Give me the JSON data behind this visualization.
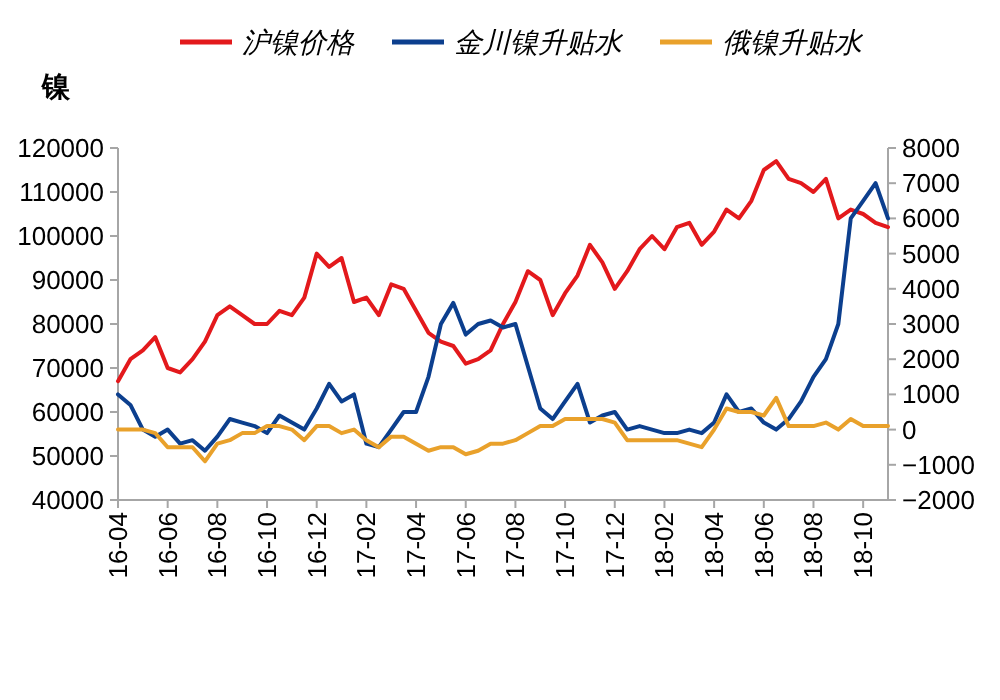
{
  "chart_data": {
    "type": "line",
    "ylabel": "镍",
    "legend": "top",
    "grid": false,
    "ylim": [
      40000,
      120000
    ],
    "yticks": [
      40000,
      50000,
      60000,
      70000,
      80000,
      90000,
      100000,
      110000,
      120000
    ],
    "y2lim": [
      -2000,
      8000
    ],
    "y2ticks": [
      {
        "value": -2000,
        "label": "−2000"
      },
      {
        "value": -1000,
        "label": "−1000"
      },
      0,
      1000,
      2000,
      3000,
      4000,
      5000,
      6000,
      7000,
      8000
    ],
    "categories": [
      "16-04",
      null,
      null,
      null,
      "16-06",
      null,
      null,
      null,
      "16-08",
      null,
      null,
      null,
      "16-10",
      null,
      null,
      null,
      "16-12",
      null,
      null,
      null,
      "17-02",
      null,
      null,
      null,
      "17-04",
      null,
      null,
      null,
      "17-06",
      null,
      null,
      null,
      "17-08",
      null,
      null,
      null,
      "17-10",
      null,
      null,
      null,
      "17-12",
      null,
      null,
      null,
      "18-02",
      null,
      null,
      null,
      "18-04",
      null,
      null,
      null,
      "18-06",
      null,
      null,
      null,
      "18-08",
      null,
      null,
      null,
      "18-10",
      null,
      null
    ],
    "series": [
      {
        "name": "沪镍价格",
        "color": "#e3191c",
        "values": [
          67000,
          72000,
          74000,
          77000,
          70000,
          69000,
          72000,
          76000,
          82000,
          84000,
          82000,
          80000,
          80000,
          83000,
          82000,
          86000,
          96000,
          93000,
          95000,
          85000,
          86000,
          82000,
          89000,
          88000,
          83000,
          78000,
          76000,
          75000,
          71000,
          72000,
          74000,
          80000,
          85000,
          92000,
          90000,
          82000,
          87000,
          91000,
          98000,
          94000,
          88000,
          92000,
          97000,
          100000,
          97000,
          102000,
          103000,
          98000,
          101000,
          106000,
          104000,
          108000,
          115000,
          117000,
          113000,
          112000,
          110000,
          113000,
          104000,
          106000,
          105000,
          103000,
          102000
        ]
      },
      {
        "name": "金川镍升贴水",
        "color": "#0c3f8e",
        "axis": "y2",
        "values": [
          1000,
          700,
          0,
          -200,
          0,
          -400,
          -300,
          -600,
          -200,
          300,
          200,
          100,
          -100,
          400,
          200,
          0,
          600,
          1300,
          800,
          1000,
          -400,
          -500,
          0,
          500,
          500,
          1500,
          3000,
          3600,
          2700,
          3000,
          3100,
          2900,
          3000,
          1800,
          600,
          300,
          800,
          1300,
          200,
          400,
          500,
          0,
          100,
          0,
          -100,
          -100,
          0,
          -100,
          200,
          1000,
          500,
          600,
          200,
          0,
          300,
          800,
          1500,
          2000,
          3000,
          6000,
          6500,
          7000,
          6000
        ]
      },
      {
        "name": "俄镍升贴水",
        "color": "#e9a12b",
        "axis": "y2",
        "values": [
          0,
          0,
          0,
          -100,
          -500,
          -500,
          -500,
          -900,
          -400,
          -300,
          -100,
          -100,
          100,
          100,
          0,
          -300,
          100,
          100,
          -100,
          0,
          -300,
          -500,
          -200,
          -200,
          -400,
          -600,
          -500,
          -500,
          -700,
          -600,
          -400,
          -400,
          -300,
          -100,
          100,
          100,
          300,
          300,
          300,
          300,
          200,
          -300,
          -300,
          -300,
          -300,
          -300,
          -400,
          -500,
          0,
          600,
          500,
          500,
          400,
          900,
          100,
          100,
          100,
          200,
          0,
          300,
          100,
          100,
          100
        ]
      }
    ]
  }
}
